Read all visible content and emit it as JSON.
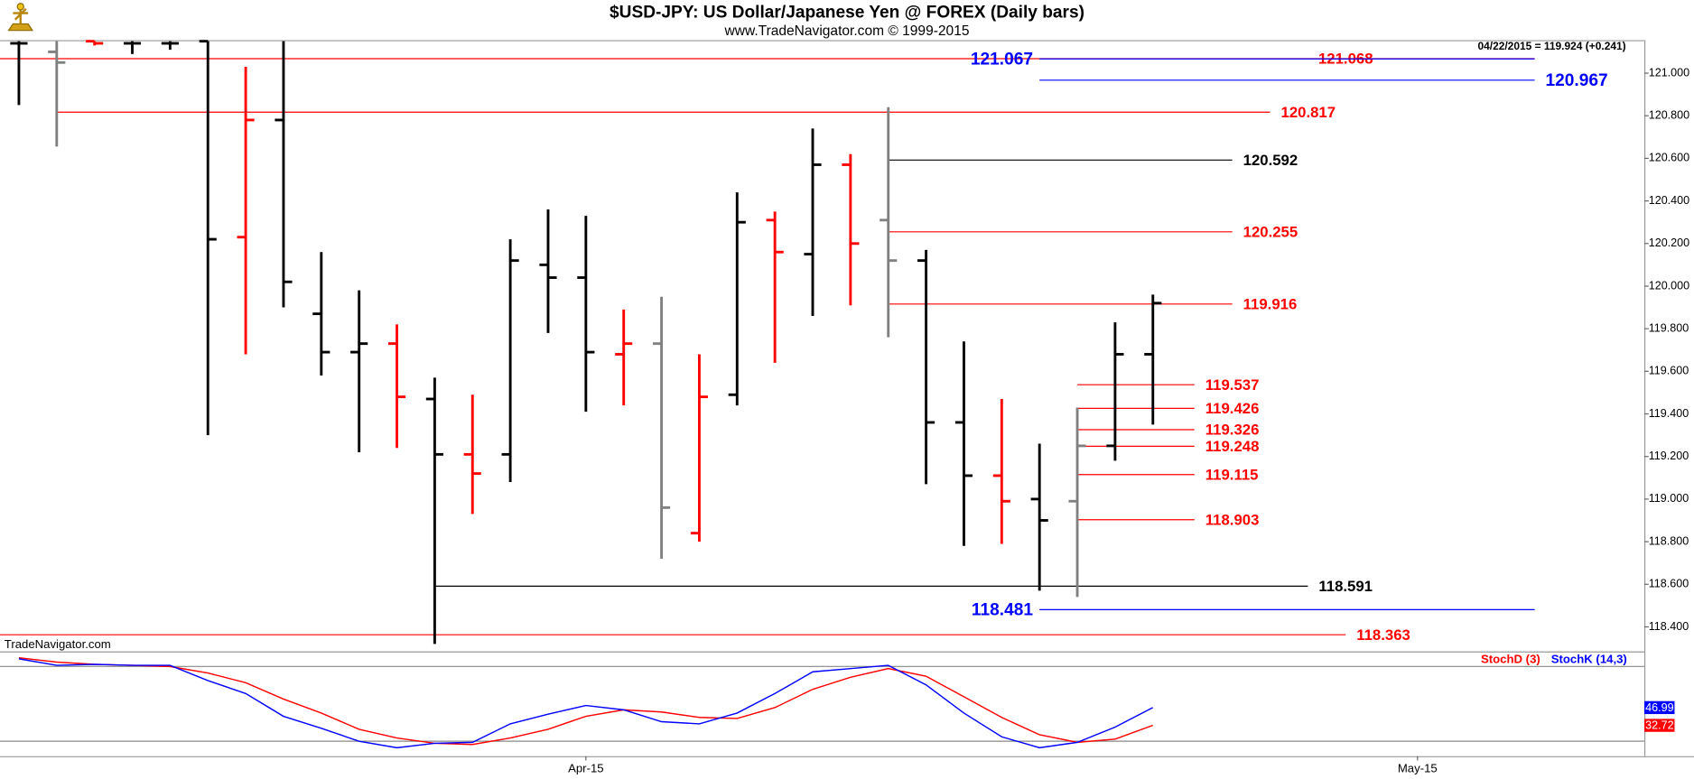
{
  "chart_data": [
    {
      "type": "ohlc",
      "title": "$USD-JPY:  US Dollar/Japanese Yen @ FOREX  (Daily bars)",
      "subtitle": "www.TradeNavigator.com © 1999-2015",
      "info": "04/22/2015 = 119.924 (+0.241)",
      "watermark": "TradeNavigator.com",
      "x": [
        0,
        1,
        2,
        3,
        4,
        5,
        6,
        7,
        8,
        9,
        10,
        11,
        12,
        13,
        14,
        15,
        16,
        17,
        18,
        19,
        20,
        21,
        22,
        23,
        24,
        25,
        26,
        27,
        28,
        29,
        30
      ],
      "open": [
        121.14,
        121.1,
        121.15,
        121.14,
        121.14,
        121.15,
        120.23,
        120.78,
        119.87,
        119.69,
        119.73,
        119.47,
        119.21,
        119.21,
        120.1,
        120.04,
        119.68,
        119.73,
        118.84,
        119.49,
        120.31,
        120.15,
        120.57,
        120.31,
        120.12,
        119.36,
        119.11,
        119.0,
        118.99,
        119.25,
        119.68
      ],
      "high": [
        121.15,
        121.15,
        121.15,
        121.15,
        121.15,
        121.15,
        121.03,
        121.15,
        120.16,
        119.98,
        119.82,
        119.57,
        119.49,
        120.22,
        120.36,
        120.33,
        119.89,
        119.95,
        119.68,
        120.44,
        120.35,
        120.74,
        120.62,
        120.84,
        120.17,
        119.74,
        119.47,
        119.26,
        119.43,
        119.83,
        119.96
      ],
      "low": [
        120.85,
        120.655,
        121.13,
        121.09,
        121.11,
        119.3,
        119.68,
        119.9,
        119.58,
        119.22,
        119.24,
        118.32,
        118.93,
        119.08,
        119.78,
        119.41,
        119.44,
        118.72,
        118.8,
        119.44,
        119.64,
        119.86,
        119.91,
        119.76,
        119.07,
        118.78,
        118.79,
        118.57,
        118.54,
        119.18,
        119.35
      ],
      "close": [
        121.14,
        121.05,
        121.14,
        121.14,
        121.14,
        120.22,
        120.78,
        120.02,
        119.69,
        119.73,
        119.48,
        119.21,
        119.12,
        120.12,
        120.04,
        119.69,
        119.73,
        118.96,
        119.48,
        120.3,
        120.16,
        120.57,
        120.2,
        120.12,
        119.36,
        119.11,
        118.99,
        118.9,
        119.25,
        119.68,
        119.92
      ],
      "colors": [
        "#000000",
        "#808080",
        "#ff0000",
        "#000000",
        "#000000",
        "#000000",
        "#ff0000",
        "#000000",
        "#000000",
        "#000000",
        "#ff0000",
        "#000000",
        "#ff0000",
        "#000000",
        "#000000",
        "#000000",
        "#ff0000",
        "#808080",
        "#ff0000",
        "#000000",
        "#ff0000",
        "#000000",
        "#ff0000",
        "#808080",
        "#000000",
        "#000000",
        "#ff0000",
        "#000000",
        "#808080",
        "#000000",
        "#000000"
      ],
      "xlim": [
        -0.5,
        43
      ],
      "ylim": [
        118.3,
        121.15
      ],
      "yticks": [
        {
          "value": 121.0,
          "label": "121.000"
        },
        {
          "value": 120.8,
          "label": "120.800"
        },
        {
          "value": 120.6,
          "label": "120.600"
        },
        {
          "value": 120.4,
          "label": "120.400"
        },
        {
          "value": 120.2,
          "label": "120.200"
        },
        {
          "value": 120.0,
          "label": "120.000"
        },
        {
          "value": 119.8,
          "label": "119.800"
        },
        {
          "value": 119.6,
          "label": "119.600"
        },
        {
          "value": 119.4,
          "label": "119.400"
        },
        {
          "value": 119.2,
          "label": "119.200"
        },
        {
          "value": 119.0,
          "label": "119.000"
        },
        {
          "value": 118.8,
          "label": "118.800"
        },
        {
          "value": 118.6,
          "label": "118.600"
        },
        {
          "value": 118.4,
          "label": "118.400"
        }
      ],
      "levels": [
        {
          "value": 121.068,
          "color": "#ff0000",
          "from": -0.5,
          "to": 40.1,
          "label_side": "right",
          "label_at": 35.1
        },
        {
          "value": 121.067,
          "color": "#0000ff",
          "from": 27,
          "to": 40.1,
          "label_side": "left"
        },
        {
          "value": 120.967,
          "color": "#0000ff",
          "from": 27,
          "to": 40.1,
          "label_side": "right"
        },
        {
          "value": 120.817,
          "color": "#ff0000",
          "from": 1,
          "to": 33.1,
          "label_side": "right"
        },
        {
          "value": 120.592,
          "color": "#000000",
          "from": 23,
          "to": 32.1,
          "label_side": "right"
        },
        {
          "value": 120.255,
          "color": "#ff0000",
          "from": 23,
          "to": 32.1,
          "label_side": "right"
        },
        {
          "value": 119.916,
          "color": "#ff0000",
          "from": 23,
          "to": 32.1,
          "label_side": "right"
        },
        {
          "value": 119.537,
          "color": "#ff0000",
          "from": 28,
          "to": 31.1,
          "label_side": "right"
        },
        {
          "value": 119.426,
          "color": "#ff0000",
          "from": 28,
          "to": 31.1,
          "label_side": "right"
        },
        {
          "value": 119.326,
          "color": "#ff0000",
          "from": 28,
          "to": 31.1,
          "label_side": "right"
        },
        {
          "value": 119.248,
          "color": "#ff0000",
          "from": 28,
          "to": 31.1,
          "label_side": "right"
        },
        {
          "value": 119.115,
          "color": "#ff0000",
          "from": 28,
          "to": 31.1,
          "label_side": "right"
        },
        {
          "value": 118.903,
          "color": "#ff0000",
          "from": 28,
          "to": 31.1,
          "label_side": "right"
        },
        {
          "value": 118.591,
          "color": "#000000",
          "from": 11,
          "to": 34.1,
          "label_side": "right"
        },
        {
          "value": 118.481,
          "color": "#0000ff",
          "from": 27,
          "to": 40.1,
          "label_side": "left"
        },
        {
          "value": 118.363,
          "color": "#ff0000",
          "from": -0.5,
          "to": 35.1,
          "label_side": "right"
        }
      ]
    },
    {
      "type": "line",
      "x": [
        0,
        1,
        2,
        3,
        4,
        5,
        6,
        7,
        8,
        9,
        10,
        11,
        12,
        13,
        14,
        15,
        16,
        17,
        18,
        19,
        20,
        21,
        22,
        23,
        24,
        25,
        26,
        27,
        28,
        29,
        30
      ],
      "series": [
        {
          "name": "StochD (3)",
          "color": "#ff0000",
          "values": [
            87,
            83.5,
            81.7,
            80.9,
            80,
            74.8,
            67,
            53.9,
            42.6,
            29.6,
            22.6,
            18.3,
            17.4,
            22.6,
            29.6,
            40,
            45.2,
            43.5,
            39.1,
            38.3,
            47,
            61.7,
            71.3,
            78.3,
            72.2,
            55.7,
            39.1,
            25.2,
            19.1,
            21.7,
            32.72
          ]
        },
        {
          "name": "StochK (14,3)",
          "color": "#0000ff",
          "values": [
            86.1,
            80.9,
            81.7,
            80.9,
            80.9,
            68.7,
            58.3,
            40,
            30.4,
            20,
            14.8,
            18.3,
            19.1,
            33.9,
            41.7,
            48.7,
            45.2,
            35.7,
            33.9,
            42.6,
            58.3,
            75.7,
            78.3,
            80.9,
            65.2,
            42.6,
            23.5,
            14.8,
            19.1,
            31.3,
            46.99
          ]
        }
      ],
      "last_value_labels": true,
      "hlines": [
        80,
        20
      ],
      "xlim": [
        -0.5,
        43
      ],
      "ylim": [
        8,
        89.5
      ],
      "xticks": [
        {
          "value": 15,
          "label": "Apr-15"
        },
        {
          "value": 37,
          "label": "May-15"
        }
      ]
    }
  ]
}
